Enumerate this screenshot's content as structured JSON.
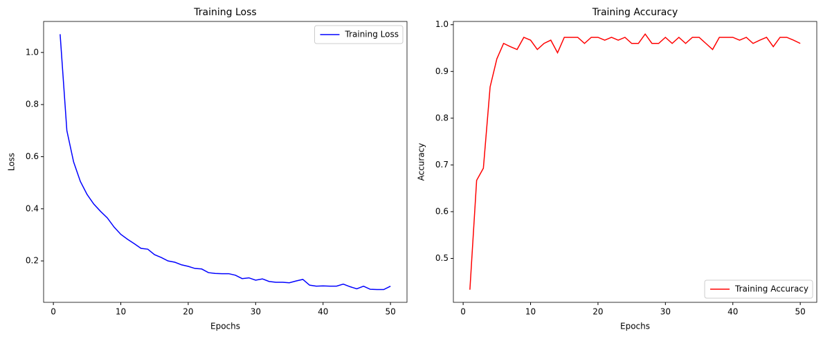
{
  "chart_data": [
    {
      "type": "line",
      "title": "Training Loss",
      "x_label": "Epochs",
      "y_label": "Loss",
      "x": [
        1,
        2,
        3,
        4,
        5,
        6,
        7,
        8,
        9,
        10,
        11,
        12,
        13,
        14,
        15,
        16,
        17,
        18,
        19,
        20,
        21,
        22,
        23,
        24,
        25,
        26,
        27,
        28,
        29,
        30,
        31,
        32,
        33,
        34,
        35,
        36,
        37,
        38,
        39,
        40,
        41,
        42,
        43,
        44,
        45,
        46,
        47,
        48,
        49,
        50
      ],
      "series": [
        {
          "name": "Training Loss",
          "color": "#0000ff",
          "values": [
            1.07,
            0.7,
            0.58,
            0.505,
            0.455,
            0.418,
            0.39,
            0.365,
            0.33,
            0.302,
            0.283,
            0.266,
            0.248,
            0.245,
            0.224,
            0.213,
            0.2,
            0.195,
            0.185,
            0.179,
            0.171,
            0.169,
            0.155,
            0.152,
            0.151,
            0.151,
            0.145,
            0.132,
            0.135,
            0.126,
            0.131,
            0.121,
            0.118,
            0.118,
            0.116,
            0.123,
            0.129,
            0.107,
            0.103,
            0.104,
            0.103,
            0.103,
            0.111,
            0.101,
            0.093,
            0.103,
            0.091,
            0.09,
            0.09,
            0.103
          ]
        }
      ],
      "xlim": [
        -1.45,
        52.45
      ],
      "xticks": [
        0,
        10,
        20,
        30,
        40,
        50
      ],
      "ylim": [
        0.041,
        1.119
      ],
      "yticks": [
        0.2,
        0.4,
        0.6,
        0.8,
        {
          "value": 1,
          "label": "1.0"
        }
      ],
      "legend": "upper right"
    },
    {
      "type": "line",
      "title": "Training Accuracy",
      "x_label": "Epochs",
      "y_label": "Accuracy",
      "x": [
        1,
        2,
        3,
        4,
        5,
        6,
        7,
        8,
        9,
        10,
        11,
        12,
        13,
        14,
        15,
        16,
        17,
        18,
        19,
        20,
        21,
        22,
        23,
        24,
        25,
        26,
        27,
        28,
        29,
        30,
        31,
        32,
        33,
        34,
        35,
        36,
        37,
        38,
        39,
        40,
        41,
        42,
        43,
        44,
        45,
        46,
        47,
        48,
        49,
        50
      ],
      "series": [
        {
          "name": "Training Accuracy",
          "color": "#ff0000",
          "values": [
            0.433,
            0.667,
            0.693,
            0.867,
            0.927,
            0.96,
            0.953,
            0.947,
            0.973,
            0.967,
            0.947,
            0.96,
            0.967,
            0.94,
            0.973,
            0.973,
            0.973,
            0.96,
            0.973,
            0.973,
            0.967,
            0.973,
            0.967,
            0.973,
            0.96,
            0.96,
            0.98,
            0.96,
            0.96,
            0.973,
            0.96,
            0.973,
            0.96,
            0.973,
            0.973,
            0.96,
            0.947,
            0.973,
            0.973,
            0.973,
            0.967,
            0.973,
            0.96,
            0.967,
            0.973,
            0.953,
            0.973,
            0.973,
            0.967,
            0.96
          ]
        }
      ],
      "xlim": [
        -1.45,
        52.45
      ],
      "xticks": [
        0,
        10,
        20,
        30,
        40,
        50
      ],
      "ylim": [
        0.406,
        1.007
      ],
      "yticks": [
        0.5,
        0.6,
        0.7,
        0.8,
        0.9,
        {
          "value": 1,
          "label": "1.0"
        }
      ],
      "legend": "lower right"
    }
  ]
}
